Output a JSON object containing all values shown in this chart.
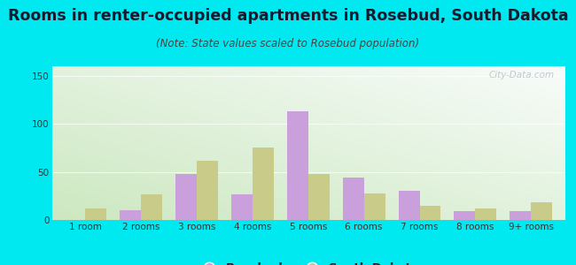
{
  "categories": [
    "1 room",
    "2 rooms",
    "3 rooms",
    "4 rooms",
    "5 rooms",
    "6 rooms",
    "7 rooms",
    "8 rooms",
    "9+ rooms"
  ],
  "rosebud": [
    0,
    10,
    48,
    27,
    113,
    44,
    30,
    9,
    9
  ],
  "south_dakota": [
    12,
    27,
    62,
    75,
    48,
    28,
    15,
    12,
    18
  ],
  "rosebud_color": "#c9a0dc",
  "sd_color": "#c8cc88",
  "title": "Rooms in renter-occupied apartments in Rosebud, South Dakota",
  "subtitle": "(Note: State values scaled to Rosebud population)",
  "ylim": [
    0,
    160
  ],
  "yticks": [
    0,
    50,
    100,
    150
  ],
  "background_outer": "#00e8f0",
  "title_color": "#1a1a2e",
  "subtitle_color": "#444444",
  "title_fontsize": 12.5,
  "subtitle_fontsize": 8.5,
  "tick_fontsize": 7.5,
  "legend_fontsize": 9.5,
  "bar_width": 0.38,
  "watermark": "City-Data.com"
}
